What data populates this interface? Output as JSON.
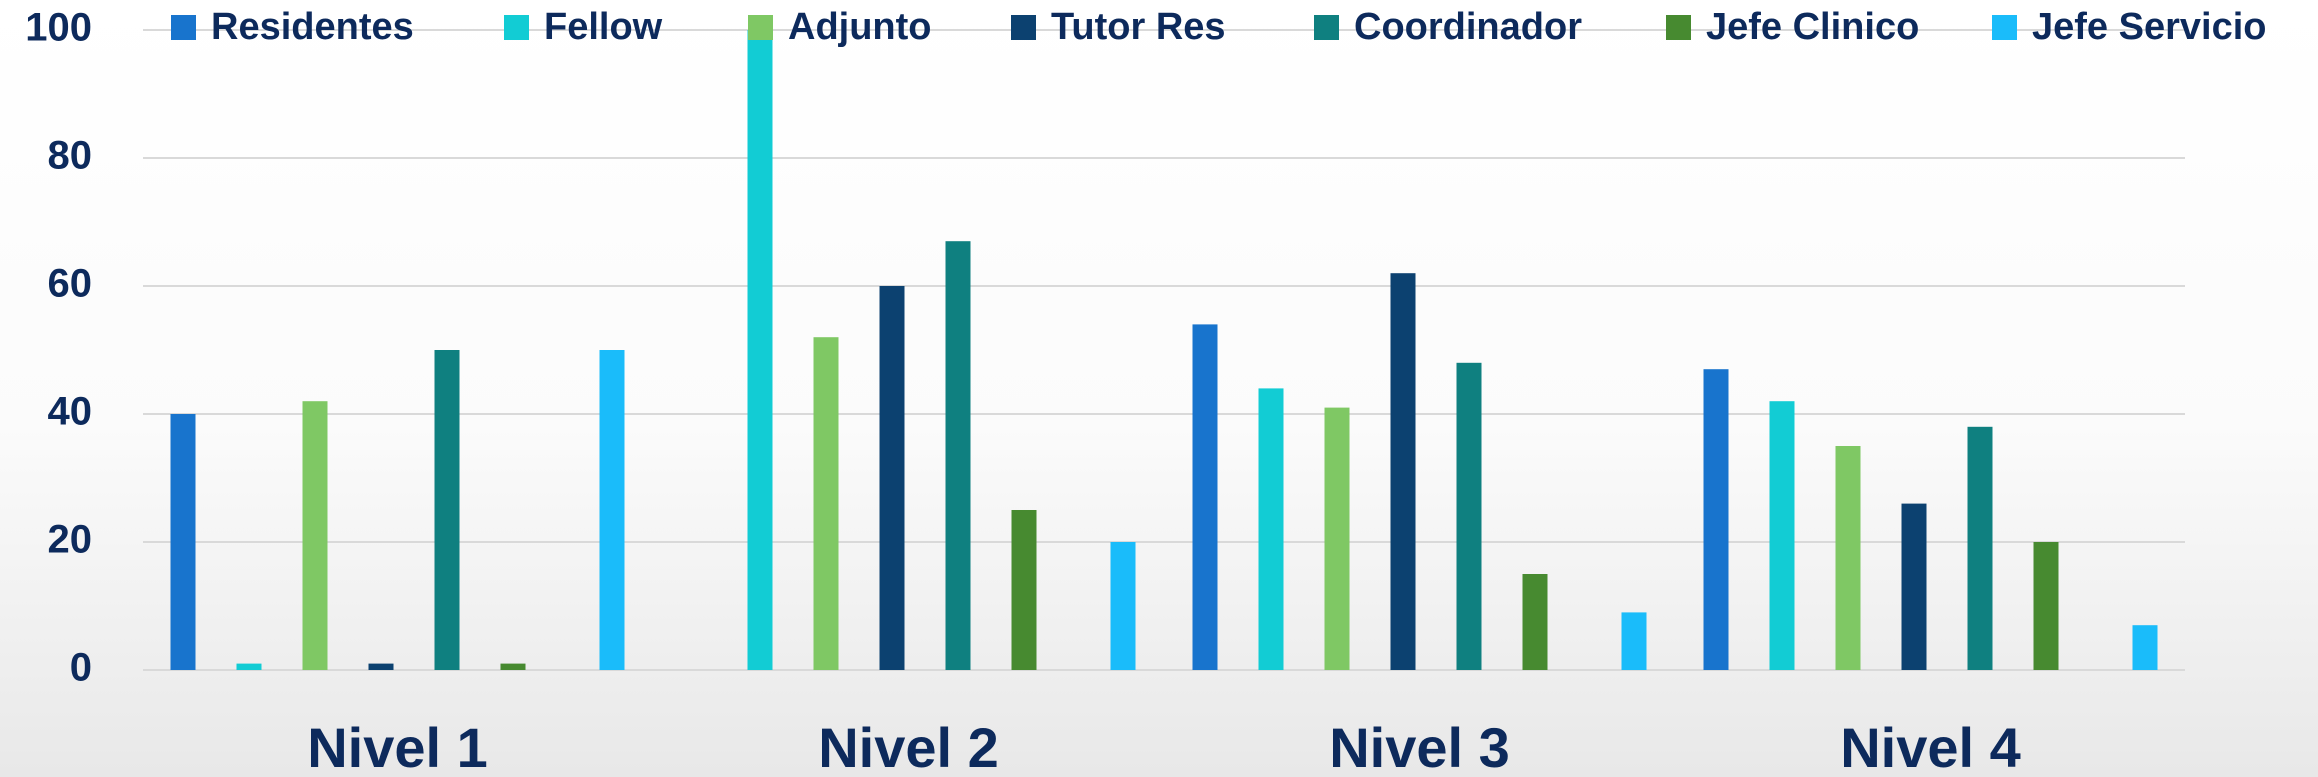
{
  "chart_data": {
    "type": "bar",
    "categories": [
      "Nivel 1",
      "Nivel 2",
      "Nivel 3",
      "Nivel 4"
    ],
    "series": [
      {
        "name": "Residentes",
        "color": "#1874cd",
        "values": [
          40,
          0,
          54,
          47
        ]
      },
      {
        "name": "Fellow",
        "color": "#12ccd4",
        "values": [
          1,
          100,
          44,
          42
        ]
      },
      {
        "name": "Adjunto",
        "color": "#7fc864",
        "values": [
          42,
          52,
          41,
          35
        ]
      },
      {
        "name": "Tutor Res",
        "color": "#0c4170",
        "values": [
          1,
          60,
          62,
          26
        ]
      },
      {
        "name": "Coordinador",
        "color": "#0f8080",
        "values": [
          50,
          67,
          48,
          38
        ]
      },
      {
        "name": "Jefe Clinico",
        "color": "#478a30",
        "values": [
          1,
          25,
          15,
          20
        ]
      },
      {
        "name": "Jefe Servicio",
        "color": "#1abcfa",
        "values": [
          50,
          20,
          9,
          7
        ]
      }
    ],
    "ylim": [
      0,
      100
    ],
    "yticks": [
      0,
      20,
      40,
      60,
      80,
      100
    ],
    "grid": true,
    "legend": "top"
  }
}
